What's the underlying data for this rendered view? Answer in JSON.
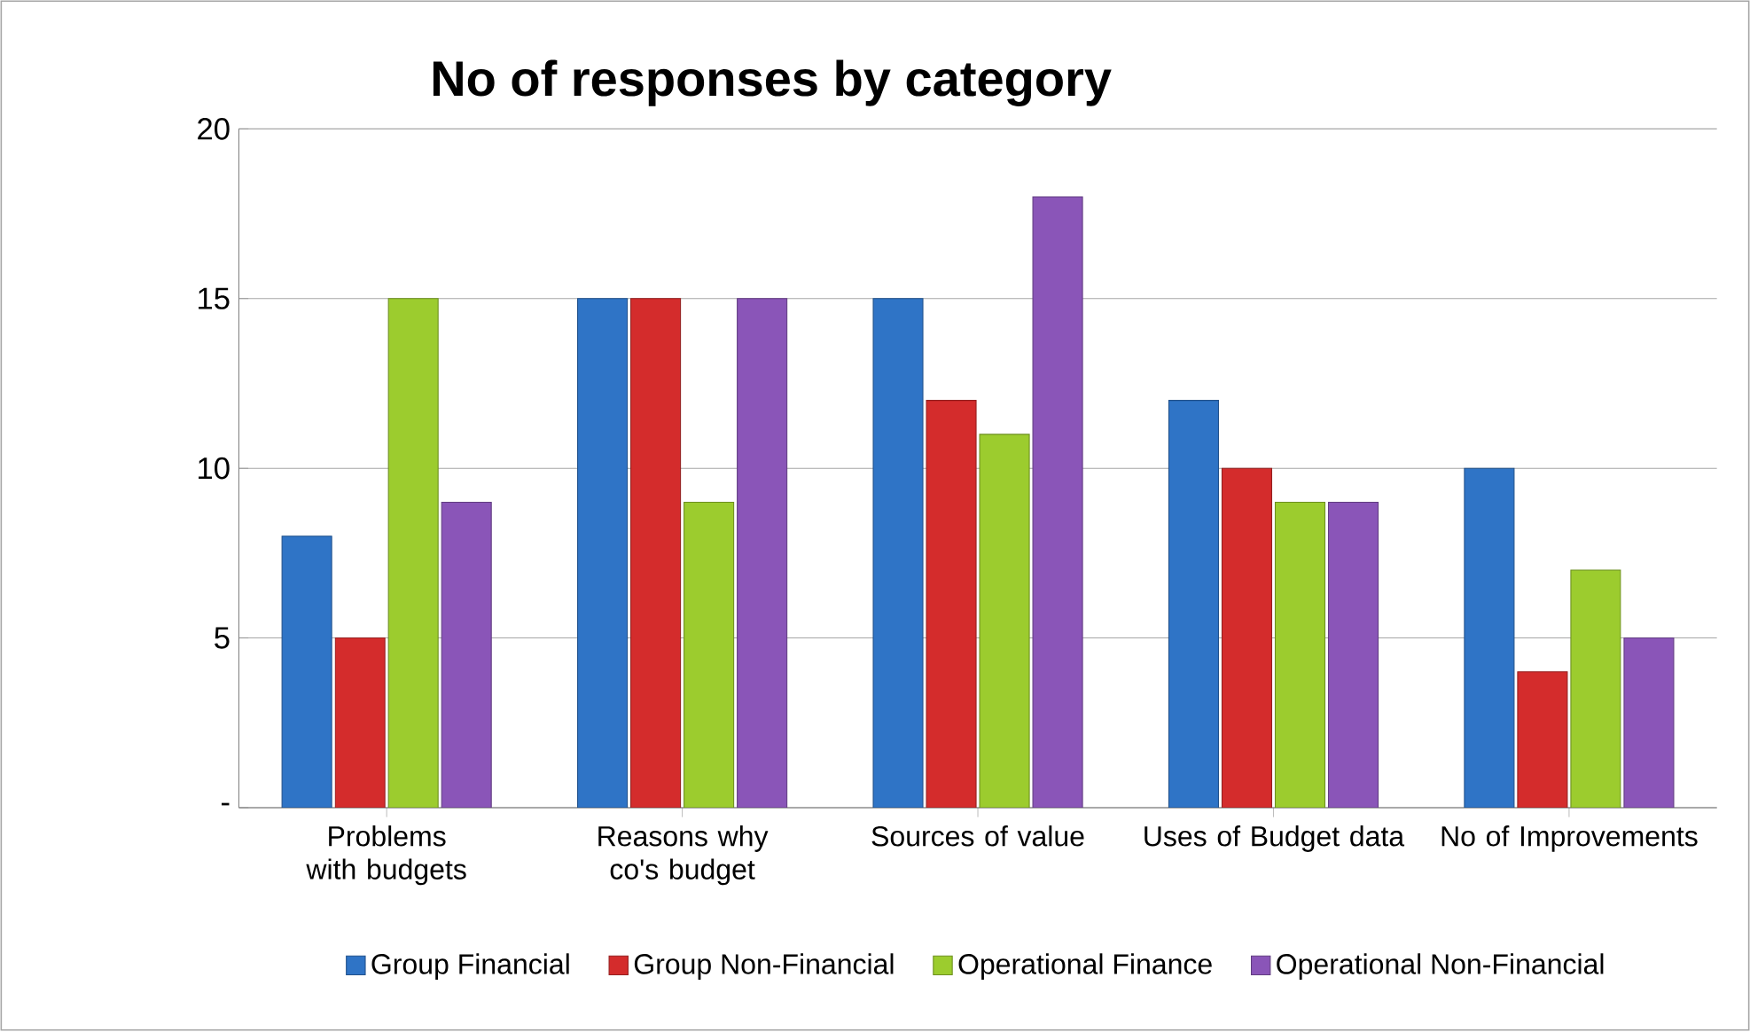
{
  "chart_data": {
    "type": "bar",
    "title": "No of responses by category",
    "categories": [
      "Problems with budgets",
      "Reasons why co's budget",
      "Sources of value",
      "Uses of Budget data",
      "No of Improvements"
    ],
    "series": [
      {
        "name": "Group Financial",
        "color": "#2f74c6",
        "values": [
          8,
          15,
          15,
          12,
          10
        ]
      },
      {
        "name": "Group Non-Financial",
        "color": "#d42c2c",
        "values": [
          5,
          15,
          12,
          10,
          4
        ]
      },
      {
        "name": "Operational Finance",
        "color": "#9ccc2e",
        "values": [
          15,
          9,
          11,
          9,
          7
        ]
      },
      {
        "name": "Operational Non-Financial",
        "color": "#8a55b8",
        "values": [
          9,
          15,
          18,
          9,
          5
        ]
      }
    ],
    "ylim": [
      0,
      20
    ],
    "yticks": [
      {
        "value": 0,
        "label": "-"
      },
      5,
      10,
      15,
      20
    ],
    "grid": "y",
    "legend": "bottom"
  }
}
